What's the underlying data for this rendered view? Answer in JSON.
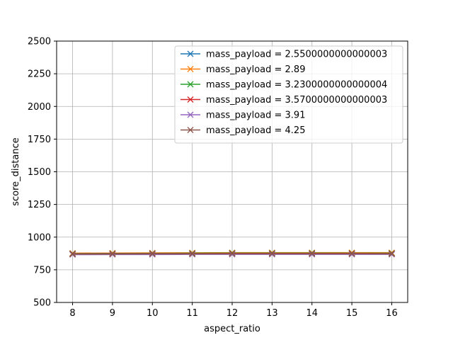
{
  "chart_data": {
    "type": "line",
    "title": "",
    "xlabel": "aspect_ratio",
    "ylabel": "score_distance",
    "x": [
      8,
      9,
      10,
      11,
      12,
      13,
      14,
      15,
      16
    ],
    "xlim": [
      7.6,
      16.4
    ],
    "ylim": [
      500,
      2500
    ],
    "xticks": [
      "8",
      "9",
      "10",
      "11",
      "12",
      "13",
      "14",
      "15",
      "16"
    ],
    "yticks": [
      "500",
      "750",
      "1000",
      "1250",
      "1500",
      "1750",
      "2000",
      "2250",
      "2500"
    ],
    "grid": true,
    "legend_position": "top-right",
    "marker": "x",
    "series": [
      {
        "name": "mass_payload = 2.5500000000000003",
        "color": "#1f77b4",
        "values": [
          875,
          876,
          877,
          877,
          878,
          878,
          878,
          878,
          878
        ]
      },
      {
        "name": "mass_payload = 2.89",
        "color": "#ff7f0e",
        "values": [
          877,
          878,
          879,
          880,
          881,
          881,
          881,
          881,
          881
        ]
      },
      {
        "name": "mass_payload = 3.2300000000000004",
        "color": "#2ca02c",
        "values": [
          874,
          875,
          876,
          877,
          878,
          878,
          878,
          877,
          877
        ]
      },
      {
        "name": "mass_payload = 3.5700000000000003",
        "color": "#d62728",
        "values": [
          872,
          873,
          874,
          874,
          875,
          875,
          875,
          875,
          874
        ]
      },
      {
        "name": "mass_payload = 3.91",
        "color": "#9467bd",
        "values": [
          866,
          867,
          867,
          868,
          868,
          868,
          868,
          868,
          868
        ]
      },
      {
        "name": "mass_payload = 4.25",
        "color": "#8c564b",
        "values": [
          870,
          871,
          872,
          872,
          873,
          873,
          873,
          873,
          872
        ]
      }
    ]
  }
}
